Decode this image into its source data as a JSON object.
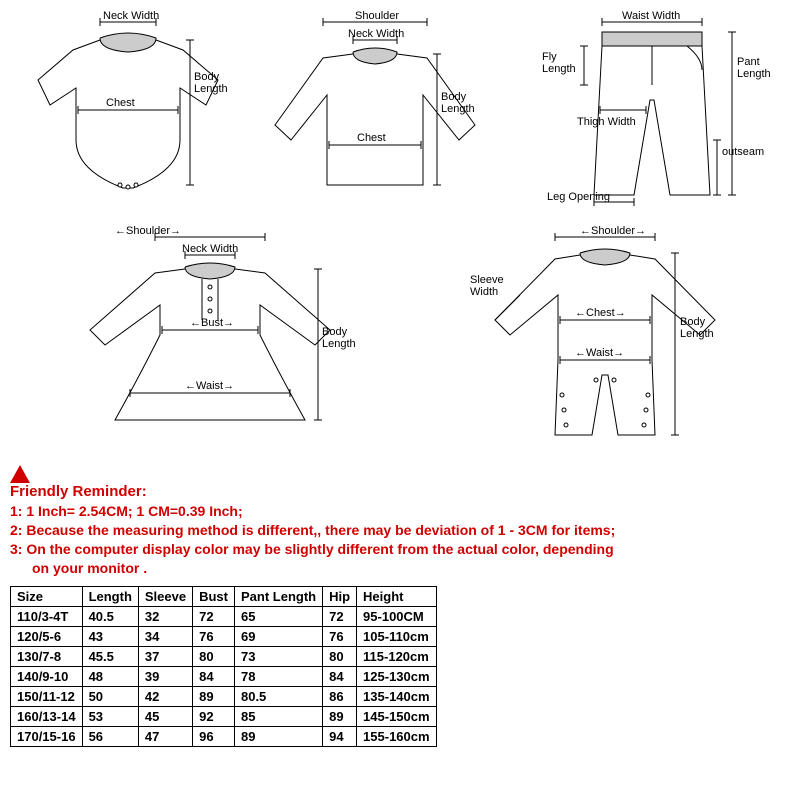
{
  "diagrams": {
    "stroke": "#000000",
    "stroke_width": 1,
    "label_fontsize": 11,
    "row1": [
      {
        "type": "onesie",
        "labels": {
          "neck": "Neck Width",
          "chest": "Chest",
          "body": "Body\nLength"
        }
      },
      {
        "type": "shirt",
        "labels": {
          "shoulder": "Shoulder",
          "neck": "Neck Width",
          "chest": "Chest",
          "body": "Body\nLength"
        }
      },
      {
        "type": "pants",
        "labels": {
          "waist": "Waist Width",
          "fly": "Fly\nLength",
          "thigh": "Thigh Width",
          "leg": "Leg Opening",
          "pant": "Pant\nLength",
          "outseam": "outseam"
        }
      }
    ],
    "row2": [
      {
        "type": "dress",
        "labels": {
          "shoulder": "Shoulder",
          "neck": "Neck Width",
          "bust": "Bust",
          "waist": "Waist",
          "body": "Body\nLength"
        }
      },
      {
        "type": "romper",
        "labels": {
          "shoulder": "Shoulder",
          "sleeve": "Sleeve\nWidth",
          "chest": "Chest",
          "waist": "Waist",
          "body": "Body\nLength"
        }
      }
    ]
  },
  "reminder": {
    "title": "Friendly Reminder:",
    "lines": [
      "1: 1 Inch= 2.54CM; 1 CM=0.39 Inch;",
      "2: Because the measuring method is different,, there may be deviation of 1 - 3CM for items;",
      "3: On the computer display color may be slightly different from the actual color, depending",
      "on your monitor ."
    ],
    "text_color": "#d00000"
  },
  "table": {
    "columns": [
      "Size",
      "Length",
      "Sleeve",
      "Bust",
      "Pant Length",
      "Hip",
      "Height"
    ],
    "rows": [
      [
        "110/3-4T",
        "40.5",
        "32",
        "72",
        "65",
        "72",
        "95-100CM"
      ],
      [
        "120/5-6",
        "43",
        "34",
        "76",
        "69",
        "76",
        "105-110cm"
      ],
      [
        "130/7-8",
        "45.5",
        "37",
        "80",
        "73",
        "80",
        "115-120cm"
      ],
      [
        "140/9-10",
        "48",
        "39",
        "84",
        "78",
        "84",
        "125-130cm"
      ],
      [
        "150/11-12",
        "50",
        "42",
        "89",
        "80.5",
        "86",
        "135-140cm"
      ],
      [
        "160/13-14",
        "53",
        "45",
        "92",
        "85",
        "89",
        "145-150cm"
      ],
      [
        "170/15-16",
        "56",
        "47",
        "96",
        "89",
        "94",
        "155-160cm"
      ]
    ]
  }
}
